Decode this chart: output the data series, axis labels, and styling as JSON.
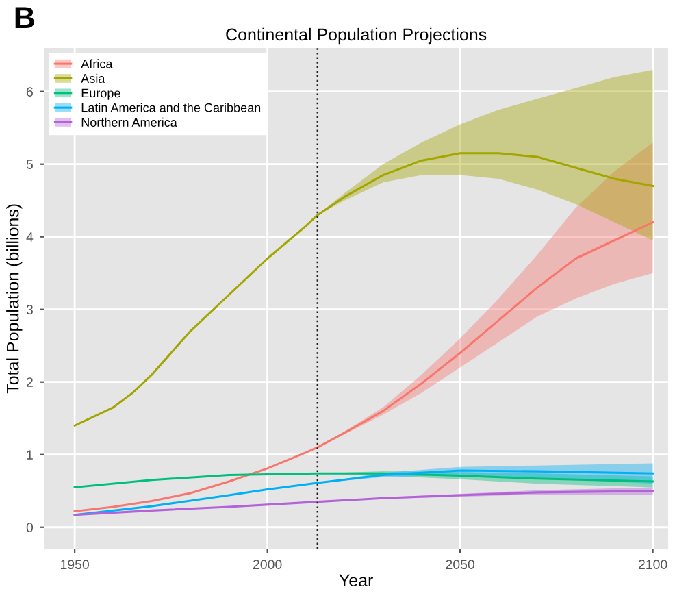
{
  "chart_data": {
    "type": "line",
    "title": "Continental Population Projections",
    "xlabel": "Year",
    "ylabel": "Total Population (billions)",
    "annotations": [
      "B"
    ],
    "xlim": [
      1942,
      2104
    ],
    "ylim": [
      -0.3,
      6.6
    ],
    "xticks": [
      1950,
      2000,
      2050,
      2100
    ],
    "yticks": [
      0,
      1,
      2,
      3,
      4,
      5,
      6
    ],
    "grid": true,
    "legend": "top left",
    "line_style": "solid",
    "marker": "none",
    "ref_lines": [
      {
        "axis": "x",
        "value": 2013,
        "label": null,
        "color": "#222222",
        "line_style": "dotted"
      }
    ],
    "series": [
      {
        "name": "Africa",
        "color": "#F8766D",
        "x": [
          1950,
          1960,
          1970,
          1980,
          1990,
          2000,
          2010,
          2013,
          2020,
          2030,
          2040,
          2050,
          2060,
          2070,
          2080,
          2090,
          2100
        ],
        "values": [
          0.22,
          0.28,
          0.36,
          0.47,
          0.63,
          0.81,
          1.03,
          1.1,
          1.3,
          1.6,
          1.98,
          2.4,
          2.85,
          3.3,
          3.7,
          3.95,
          4.2
        ],
        "lower": [
          null,
          null,
          null,
          null,
          null,
          null,
          null,
          1.1,
          1.28,
          1.55,
          1.85,
          2.2,
          2.55,
          2.9,
          3.15,
          3.35,
          3.5
        ],
        "upper": [
          null,
          null,
          null,
          null,
          null,
          null,
          null,
          1.1,
          1.32,
          1.65,
          2.1,
          2.6,
          3.15,
          3.75,
          4.4,
          4.9,
          5.3
        ]
      },
      {
        "name": "Asia",
        "color": "#A3A500",
        "x": [
          1950,
          1960,
          1965,
          1970,
          1980,
          1990,
          2000,
          2010,
          2013,
          2020,
          2030,
          2040,
          2050,
          2060,
          2070,
          2080,
          2090,
          2100
        ],
        "values": [
          1.4,
          1.65,
          1.85,
          2.1,
          2.7,
          3.2,
          3.7,
          4.15,
          4.3,
          4.55,
          4.85,
          5.05,
          5.15,
          5.15,
          5.1,
          4.95,
          4.8,
          4.7
        ],
        "lower": [
          null,
          null,
          null,
          null,
          null,
          null,
          null,
          null,
          4.3,
          4.5,
          4.75,
          4.85,
          4.85,
          4.8,
          4.65,
          4.45,
          4.2,
          3.95
        ],
        "upper": [
          null,
          null,
          null,
          null,
          null,
          null,
          null,
          null,
          4.3,
          4.6,
          5.0,
          5.3,
          5.55,
          5.75,
          5.9,
          6.05,
          6.2,
          6.3
        ]
      },
      {
        "name": "Europe",
        "color": "#00BF7D",
        "x": [
          1950,
          1970,
          1990,
          2013,
          2030,
          2050,
          2070,
          2100
        ],
        "values": [
          0.55,
          0.65,
          0.72,
          0.74,
          0.74,
          0.71,
          0.67,
          0.63
        ],
        "lower": [
          null,
          null,
          null,
          0.74,
          0.71,
          0.66,
          0.6,
          0.55
        ],
        "upper": [
          null,
          null,
          null,
          0.74,
          0.77,
          0.76,
          0.74,
          0.7
        ]
      },
      {
        "name": "Latin America and the Caribbean",
        "color": "#00B0F6",
        "x": [
          1950,
          1970,
          1990,
          2000,
          2013,
          2030,
          2050,
          2070,
          2100
        ],
        "values": [
          0.17,
          0.29,
          0.44,
          0.52,
          0.61,
          0.72,
          0.78,
          0.77,
          0.74
        ],
        "lower": [
          null,
          null,
          null,
          null,
          0.61,
          0.69,
          0.72,
          0.68,
          0.6
        ],
        "upper": [
          null,
          null,
          null,
          null,
          0.61,
          0.75,
          0.83,
          0.85,
          0.88
        ]
      },
      {
        "name": "Northern America",
        "color": "#B362D8",
        "x": [
          1950,
          1970,
          1990,
          2013,
          2030,
          2050,
          2070,
          2100
        ],
        "values": [
          0.17,
          0.23,
          0.28,
          0.35,
          0.4,
          0.44,
          0.48,
          0.5
        ],
        "lower": [
          null,
          null,
          null,
          0.35,
          0.39,
          0.42,
          0.45,
          0.45
        ],
        "upper": [
          null,
          null,
          null,
          0.35,
          0.41,
          0.46,
          0.51,
          0.55
        ]
      }
    ]
  }
}
